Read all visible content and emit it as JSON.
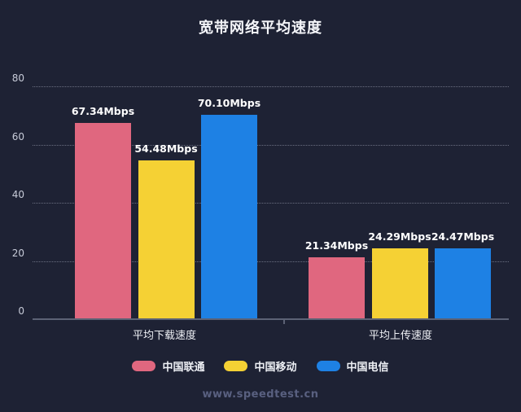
{
  "title": "宽带网络平均速度",
  "footer": "www.speedtest.cn",
  "colors": {
    "background": "#1e2234",
    "unicom_pink": "#e0677f",
    "mobile_yellow": "#f5d134",
    "telecom_blue": "#1e81e4",
    "axis_line": "#5c6275",
    "grid_line": "rgba(200,206,224,0.45)",
    "tick_label": "#c7cbd8",
    "value_label": "#ffffff",
    "footer_text": "#596080"
  },
  "chart_data": {
    "type": "bar",
    "title": "宽带网络平均速度",
    "categories": [
      "平均下载速度",
      "平均上传速度"
    ],
    "category_keys": [
      "download",
      "upload"
    ],
    "series": [
      {
        "key": "unicom",
        "name": "中国联通",
        "color": "#e0677f",
        "values": [
          67.34,
          21.34
        ],
        "labels": [
          "67.34Mbps",
          "21.34Mbps"
        ]
      },
      {
        "key": "mobile",
        "name": "中国移动",
        "color": "#f5d134",
        "values": [
          54.48,
          24.29
        ],
        "labels": [
          "54.48Mbps",
          "24.29Mbps"
        ]
      },
      {
        "key": "telecom",
        "name": "中国电信",
        "color": "#1e81e4",
        "values": [
          70.1,
          24.47
        ],
        "labels": [
          "70.10Mbps",
          "24.47Mbps"
        ]
      }
    ],
    "unit": "Mbps",
    "xlabel": "",
    "ylabel": "",
    "y_ticks": [
      0,
      20,
      40,
      60,
      80
    ],
    "ylim": [
      0,
      80
    ],
    "grid": true,
    "grid_style": "dotted",
    "legend_position": "bottom",
    "watermark": "www.speedtest.cn"
  }
}
